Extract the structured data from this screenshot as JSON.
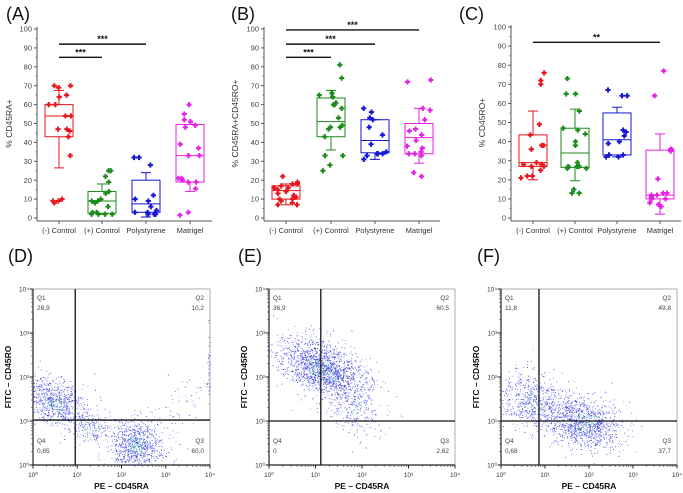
{
  "chart_data": [
    {
      "type": "box",
      "panel_label": "(A)",
      "ylabel": "% CD45RA+",
      "ylim": [
        0,
        100
      ],
      "yticks": [
        "0",
        "10",
        "20",
        "30",
        "40",
        "50",
        "60",
        "70",
        "80",
        "90",
        "100"
      ],
      "categories": [
        "(-) Control",
        "(+) Control",
        "Polystyrene",
        "Matrigel"
      ],
      "colors": [
        "#e8141b",
        "#1a8a1a",
        "#1515d6",
        "#e61ee6"
      ],
      "series": [
        {
          "name": "(-) Control",
          "q1": 43,
          "median": 54,
          "q3": 60,
          "whisker_low": 26.5,
          "whisker_high": 67.5,
          "points": [
            70,
            70,
            69,
            65,
            64,
            60,
            60,
            54,
            54,
            47,
            47,
            46,
            43,
            33,
            10,
            9,
            9,
            8
          ]
        },
        {
          "name": "(+) Control",
          "q1": 2.5,
          "median": 9,
          "q3": 14,
          "whisker_low": 2,
          "whisker_high": 18,
          "points": [
            25,
            25,
            22,
            19,
            14,
            13,
            10,
            9,
            9,
            8,
            6,
            3,
            3,
            2,
            2,
            2,
            2
          ]
        },
        {
          "name": "Polystyrene",
          "q1": 3,
          "median": 7.5,
          "q3": 20,
          "whisker_low": 0.5,
          "whisker_high": 24,
          "points": [
            32,
            32,
            28,
            12,
            10,
            9,
            6,
            4,
            3,
            3,
            2,
            2,
            2
          ]
        },
        {
          "name": "Matrigel",
          "q1": 19,
          "median": 33,
          "q3": 49.5,
          "whisker_low": 14,
          "whisker_high": 49.5,
          "points": [
            60,
            55,
            52,
            51,
            49,
            48,
            39,
            37,
            33,
            33,
            21,
            21,
            20,
            19,
            19,
            15.5,
            3,
            1.5
          ]
        }
      ],
      "significance": [
        {
          "from": 0,
          "to": 1,
          "y": 85,
          "label": "***"
        },
        {
          "from": 0,
          "to": 2,
          "y": 92,
          "label": "***"
        }
      ]
    },
    {
      "type": "box",
      "panel_label": "(B)",
      "ylabel": "% CD45RA+CD45RO+",
      "ylim": [
        0,
        100
      ],
      "yticks": [
        "0",
        "10",
        "20",
        "30",
        "40",
        "50",
        "60",
        "70",
        "80",
        "90",
        "100"
      ],
      "categories": [
        "(-) Control",
        "(+) Control",
        "Polystyrene",
        "Matrigel"
      ],
      "colors": [
        "#e8141b",
        "#1a8a1a",
        "#1515d6",
        "#e61ee6"
      ],
      "series": [
        {
          "name": "(-) Control",
          "q1": 10,
          "median": 14.5,
          "q3": 17,
          "whisker_low": 7,
          "whisker_high": 18,
          "points": [
            22,
            19,
            18,
            18,
            17,
            16,
            16,
            15,
            14,
            13,
            12,
            11,
            10,
            10,
            9,
            8,
            7,
            7
          ]
        },
        {
          "name": "(+) Control",
          "q1": 43,
          "median": 51,
          "q3": 63.5,
          "whisker_low": 36,
          "whisker_high": 67.5,
          "points": [
            81,
            74,
            66,
            65,
            64,
            61,
            60,
            60,
            58,
            53,
            49,
            48,
            48,
            47,
            43,
            33,
            33,
            28,
            25
          ]
        },
        {
          "name": "Polystyrene",
          "q1": 34.5,
          "median": 41,
          "q3": 52,
          "whisker_low": 31,
          "whisker_high": 52,
          "points": [
            58,
            56,
            53,
            52,
            48,
            44,
            39,
            35,
            34,
            34,
            34,
            33,
            31
          ]
        },
        {
          "name": "Matrigel",
          "q1": 34,
          "median": 42.5,
          "q3": 50,
          "whisker_low": 29,
          "whisker_high": 58,
          "points": [
            73,
            72,
            58,
            57,
            52,
            47,
            46,
            44,
            41,
            38,
            37,
            35,
            34,
            34,
            33,
            24,
            22
          ]
        }
      ],
      "significance": [
        {
          "from": 0,
          "to": 1,
          "y": 85,
          "label": "***"
        },
        {
          "from": 0,
          "to": 2,
          "y": 92,
          "label": "***"
        },
        {
          "from": 0,
          "to": 3,
          "y": 99.5,
          "label": "***"
        }
      ]
    },
    {
      "type": "box",
      "panel_label": "(C)",
      "ylabel": "% CD45RO+",
      "ylim": [
        0,
        100
      ],
      "yticks": [
        "0",
        "10",
        "20",
        "30",
        "40",
        "50",
        "60",
        "70",
        "80",
        "90",
        "100"
      ],
      "categories": [
        "(-) Control",
        "(+) Control",
        "Polystyrene",
        "Matrigel"
      ],
      "colors": [
        "#e8141b",
        "#1a8a1a",
        "#1515d6",
        "#e61ee6"
      ],
      "series": [
        {
          "name": "(-) Control",
          "q1": 27,
          "median": 29,
          "q3": 43.5,
          "whisker_low": 20,
          "whisker_high": 56,
          "points": [
            76,
            72,
            70,
            49,
            43.5,
            38,
            38,
            36,
            29,
            28,
            28,
            28,
            27,
            27,
            25,
            22,
            22,
            21
          ]
        },
        {
          "name": "(+) Control",
          "q1": 26.5,
          "median": 34,
          "q3": 47,
          "whisker_low": 19.5,
          "whisker_high": 57,
          "points": [
            73,
            65,
            65,
            56,
            47,
            46,
            44,
            40,
            38,
            29,
            27,
            27,
            27,
            26,
            26,
            15,
            13,
            13
          ]
        },
        {
          "name": "Polystyrene",
          "q1": 33,
          "median": 41,
          "q3": 55,
          "whisker_low": 32,
          "whisker_high": 58,
          "points": [
            67,
            64,
            64,
            46,
            45,
            43,
            40,
            39,
            33,
            33,
            33,
            32,
            32
          ]
        },
        {
          "name": "Matrigel",
          "q1": 10,
          "median": 12,
          "q3": 35.5,
          "whisker_low": 2,
          "whisker_high": 44,
          "points": [
            77,
            64,
            36,
            36,
            35,
            20.5,
            13,
            13,
            12,
            12,
            11,
            10,
            10,
            8,
            7,
            6
          ]
        }
      ],
      "significance": [
        {
          "from": 0,
          "to": 3,
          "y": 92,
          "label": "**"
        }
      ]
    },
    {
      "type": "scatter",
      "panel_label": "(D)",
      "xlabel": "PE – CD45RA",
      "ylabel": "FITC – CD45RO",
      "scale": "log10",
      "xlim": [
        1,
        10000
      ],
      "ylim": [
        1,
        10000
      ],
      "tick_labels": [
        "10⁰",
        "10¹",
        "10²",
        "10³",
        "10⁴"
      ],
      "gate": {
        "x": 9,
        "y": 10.5
      },
      "quadrants": {
        "Q1": {
          "label": "Q1",
          "value": "28,9"
        },
        "Q2": {
          "label": "Q2",
          "value": "10,2"
        },
        "Q3": {
          "label": "Q3",
          "value": "60,0"
        },
        "Q4": {
          "label": "Q4",
          "value": "0,85"
        }
      },
      "populations": [
        {
          "n": 700,
          "log_x": 0.45,
          "log_y": 1.45,
          "sd_x": 0.35,
          "sd_y": 0.28,
          "rho": -0.3
        },
        {
          "n": 250,
          "log_x": 1.3,
          "log_y": 0.9,
          "sd_x": 0.3,
          "sd_y": 0.25,
          "rho": -0.5
        },
        {
          "n": 800,
          "log_x": 2.35,
          "log_y": 0.45,
          "sd_x": 0.3,
          "sd_y": 0.28,
          "rho": 0
        },
        {
          "n": 60,
          "log_x": 3.3,
          "log_y": 1.3,
          "sd_x": 0.35,
          "sd_y": 0.35,
          "rho": 0.6
        },
        {
          "n": 40,
          "log_x": 3.98,
          "log_y": 2.3,
          "sd_x": 0.02,
          "sd_y": 0.4,
          "rho": 0
        }
      ]
    },
    {
      "type": "scatter",
      "panel_label": "(E)",
      "xlabel": "PE – CD45RA",
      "ylabel": "FITC – CD45RO",
      "scale": "log10",
      "xlim": [
        1,
        10000
      ],
      "ylim": [
        1,
        10000
      ],
      "tick_labels": [
        "10⁰",
        "10¹",
        "10²",
        "10³",
        "10⁴"
      ],
      "gate": {
        "x": 13,
        "y": 10
      },
      "quadrants": {
        "Q1": {
          "label": "Q1",
          "value": "36,9"
        },
        "Q2": {
          "label": "Q2",
          "value": "60,5"
        },
        "Q3": {
          "label": "Q3",
          "value": "2,62"
        },
        "Q4": {
          "label": "Q4",
          "value": "0"
        }
      },
      "populations": [
        {
          "n": 1600,
          "log_x": 1.15,
          "log_y": 2.2,
          "sd_x": 0.45,
          "sd_y": 0.35,
          "rho": -0.45
        },
        {
          "n": 250,
          "log_x": 1.8,
          "log_y": 1.3,
          "sd_x": 0.35,
          "sd_y": 0.35,
          "rho": -0.3
        }
      ]
    },
    {
      "type": "scatter",
      "panel_label": "(F)",
      "xlabel": "PE – CD45RA",
      "ylabel": "FITC – CD45RO",
      "scale": "log10",
      "xlim": [
        1,
        10000
      ],
      "ylim": [
        1,
        10000
      ],
      "tick_labels": [
        "10⁰",
        "10¹",
        "10²",
        "10³",
        "10⁴"
      ],
      "gate": {
        "x": 7.3,
        "y": 10
      },
      "quadrants": {
        "Q1": {
          "label": "Q1",
          "value": "11,8"
        },
        "Q2": {
          "label": "Q2",
          "value": "49,8"
        },
        "Q3": {
          "label": "Q3",
          "value": "37,7"
        },
        "Q4": {
          "label": "Q4",
          "value": "0,68"
        }
      },
      "populations": [
        {
          "n": 700,
          "log_x": 0.8,
          "log_y": 1.45,
          "sd_x": 0.45,
          "sd_y": 0.35,
          "rho": -0.3
        },
        {
          "n": 1000,
          "log_x": 1.9,
          "log_y": 0.95,
          "sd_x": 0.4,
          "sd_y": 0.3,
          "rho": -0.2
        }
      ]
    }
  ]
}
